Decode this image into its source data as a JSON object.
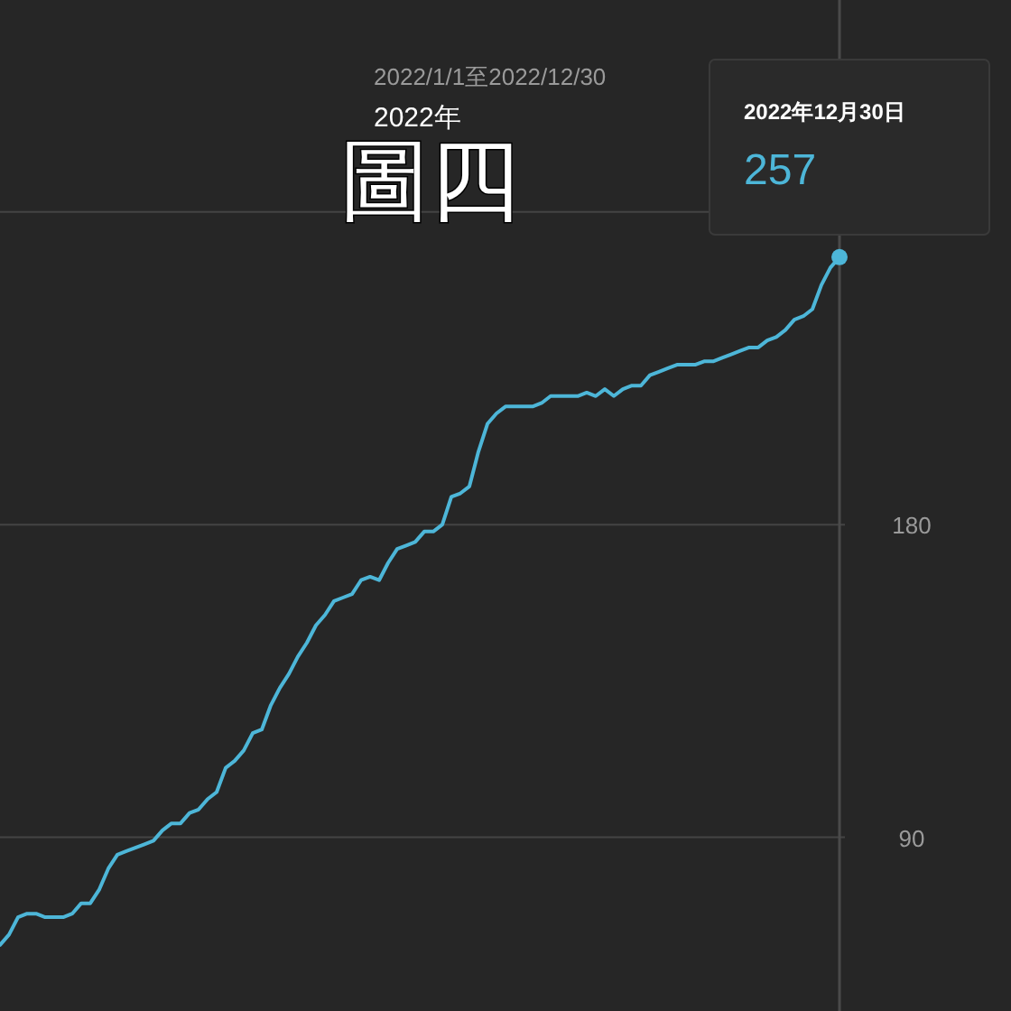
{
  "chart_data": {
    "type": "line",
    "title": "2022年",
    "subtitle": "2022/1/1至2022/12/30",
    "annotations": [
      "圖四",
      "2022年12月30日",
      "257"
    ],
    "categories": [
      null,
      null,
      null,
      null,
      null,
      null,
      null,
      null,
      null,
      null,
      null,
      null,
      null,
      null,
      null,
      null,
      null,
      null,
      null,
      null,
      null,
      null,
      null,
      null,
      null,
      null,
      null,
      null,
      null,
      null,
      null,
      null,
      null,
      null,
      null,
      null,
      null,
      null,
      null,
      null,
      null,
      null,
      null,
      null,
      null,
      null,
      null,
      null,
      null,
      null,
      null,
      null,
      null,
      null,
      null,
      null,
      null,
      null,
      null,
      null,
      null,
      null,
      null,
      null,
      null,
      null,
      null,
      null,
      null,
      null,
      null,
      null,
      null,
      null,
      null,
      null,
      null,
      null,
      null,
      null,
      null,
      null,
      null,
      null,
      null,
      null,
      null,
      null,
      null,
      null,
      null,
      null,
      null,
      null
    ],
    "ylim": [
      40,
      331
    ],
    "yticks": [
      90,
      180,
      {
        "value": 270,
        "label": null
      }
    ],
    "grid": "y",
    "tick_labels": "y",
    "series": [
      {
        "color": "#4db6d8",
        "marker": "none",
        "values": [
          59,
          62,
          67,
          68,
          68,
          67,
          67,
          67,
          68,
          71,
          71,
          75,
          81,
          85,
          86,
          87,
          88,
          89,
          92,
          94,
          94,
          97,
          98,
          101,
          103,
          110,
          112,
          115,
          120,
          121,
          128,
          133,
          137,
          142,
          146,
          151,
          154,
          158,
          159,
          160,
          164,
          165,
          164,
          169,
          173,
          174,
          175,
          178,
          178,
          180,
          188,
          189,
          191,
          201,
          209,
          212,
          214,
          214,
          214,
          214,
          215,
          217,
          217,
          217,
          217,
          218,
          217,
          219,
          217,
          219,
          220,
          220,
          223,
          224,
          225,
          226,
          226,
          226,
          227,
          227,
          228,
          229,
          230,
          231,
          231,
          233,
          234,
          236,
          239,
          240,
          242,
          249,
          254,
          257
        ]
      }
    ]
  }
}
